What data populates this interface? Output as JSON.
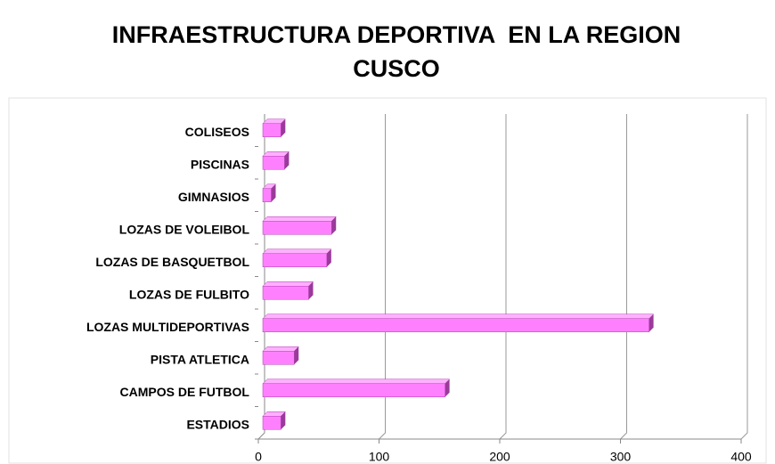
{
  "chart_data": {
    "type": "bar3d_horizontal",
    "title": "INFRAESTRUCTURA DEPORTIVA  EN LA REGION CUSCO",
    "categories": [
      "ESTADIOS",
      "CAMPOS DE FUTBOL",
      "PISTA ATLETICA",
      "LOZAS MULTIDEPORTIVAS",
      "LOZAS DE FULBITO",
      "LOZAS DE BASQUETBOL",
      "LOZAS DE VOLEIBOL",
      "GIMNASIOS",
      "PISCINAS",
      "COLISEOS"
    ],
    "values": [
      15,
      151,
      26,
      320,
      38,
      53,
      57,
      7,
      18,
      15
    ],
    "color": "#ff80ff",
    "xlim": [
      0,
      400
    ],
    "xticks": [
      0,
      100,
      200,
      300,
      400
    ],
    "grid": true
  }
}
